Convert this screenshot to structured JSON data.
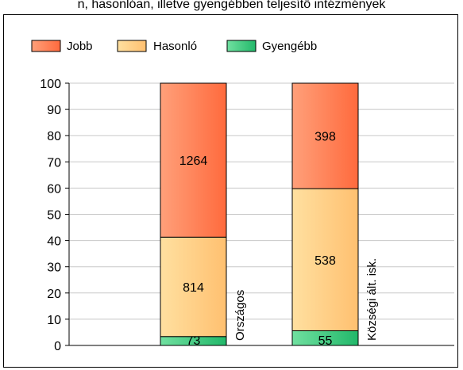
{
  "page_title": "n, hasonlóan, illetve gyengébben teljesítő intézmények",
  "colors": {
    "jobb_light": "#ffa07a",
    "jobb_dark": "#ff6a3d",
    "hasonlo_light": "#ffe0a0",
    "hasonlo_dark": "#ffc070",
    "gyengebb_light": "#70e0a0",
    "gyengebb_dark": "#22b86a"
  },
  "chart_data": {
    "type": "bar",
    "stacked": true,
    "categories": [
      "Országos",
      "Községi ált. isk."
    ],
    "series": [
      {
        "name": "Gyengébb",
        "values": [
          3.4,
          5.6
        ],
        "labels": [
          "73",
          "55"
        ]
      },
      {
        "name": "Hasonló",
        "values": [
          37.9,
          54.2
        ],
        "labels": [
          "814",
          "538"
        ]
      },
      {
        "name": "Jobb",
        "values": [
          58.7,
          40.2
        ],
        "labels": [
          "1264",
          "398"
        ]
      }
    ],
    "legend": [
      "Jobb",
      "Hasonló",
      "Gyengébb"
    ],
    "legend_position": "top-left",
    "ylim": [
      0,
      100
    ],
    "yticks": [
      "0",
      "10",
      "20",
      "30",
      "40",
      "50",
      "60",
      "70",
      "80",
      "90",
      "100"
    ],
    "grid": true,
    "title": "",
    "xlabel": "",
    "ylabel": ""
  }
}
